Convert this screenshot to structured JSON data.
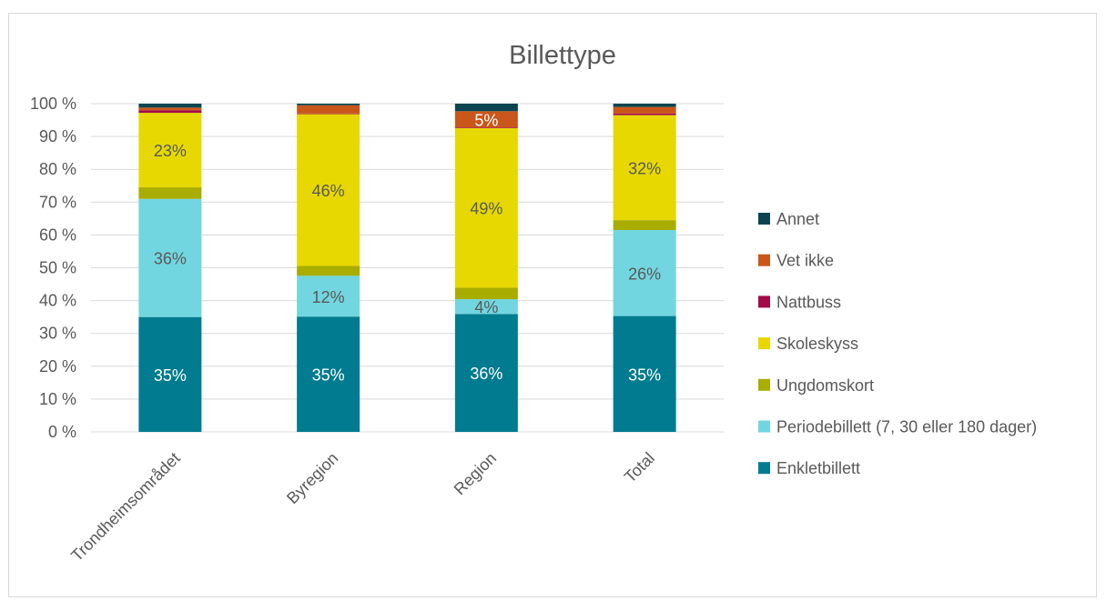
{
  "chart_data": {
    "type": "bar",
    "stacked": true,
    "percent_stacked": true,
    "title": "Billettype",
    "xlabel": "",
    "ylabel": "",
    "ylim": [
      0,
      100
    ],
    "y_ticks": [
      "0 %",
      "10 %",
      "20 %",
      "30 %",
      "40 %",
      "50 %",
      "60 %",
      "70 %",
      "80 %",
      "90 %",
      "100 %"
    ],
    "grid": true,
    "legend_position": "right",
    "categories": [
      "Trondheimsområdet",
      "Byregion",
      "Region",
      "Total"
    ],
    "series": [
      {
        "name": "Enkletbillett",
        "color": "#007B8F",
        "values": [
          35,
          35.3,
          36,
          35.3
        ],
        "labels": [
          "35%",
          "35%",
          "36%",
          "35%"
        ],
        "label_color": "#ffffff"
      },
      {
        "name": "Periodebillett (7, 30 eller 180 dager)",
        "color": "#72D6E0",
        "values": [
          36,
          12.5,
          4.5,
          26.2
        ],
        "labels": [
          "36%",
          "12%",
          "4%",
          "26%"
        ],
        "label_color": "#595959"
      },
      {
        "name": "Ungdomskort",
        "color": "#A8AD00",
        "values": [
          3.5,
          3,
          3.5,
          3
        ],
        "labels": [
          "",
          "",
          "",
          ""
        ],
        "label_color": "#595959"
      },
      {
        "name": "Skoleskyss",
        "color": "#E6D800",
        "values": [
          22.7,
          46.5,
          48.7,
          32
        ],
        "labels": [
          "23%",
          "46%",
          "49%",
          "32%"
        ],
        "label_color": "#595959"
      },
      {
        "name": "Nattbuss",
        "color": "#A30B47",
        "values": [
          0.8,
          0.2,
          0.2,
          0.5
        ],
        "labels": [
          "",
          "",
          "",
          ""
        ],
        "label_color": "#595959"
      },
      {
        "name": "Vet ikke",
        "color": "#C9561A",
        "values": [
          0.8,
          2.5,
          5,
          2
        ],
        "labels": [
          "",
          "",
          "5%",
          ""
        ],
        "label_color": "#ffffff"
      },
      {
        "name": "Annet",
        "color": "#0B4550",
        "values": [
          1.2,
          0.5,
          2.3,
          1
        ],
        "labels": [
          "",
          "",
          "",
          ""
        ],
        "label_color": "#ffffff"
      }
    ]
  }
}
